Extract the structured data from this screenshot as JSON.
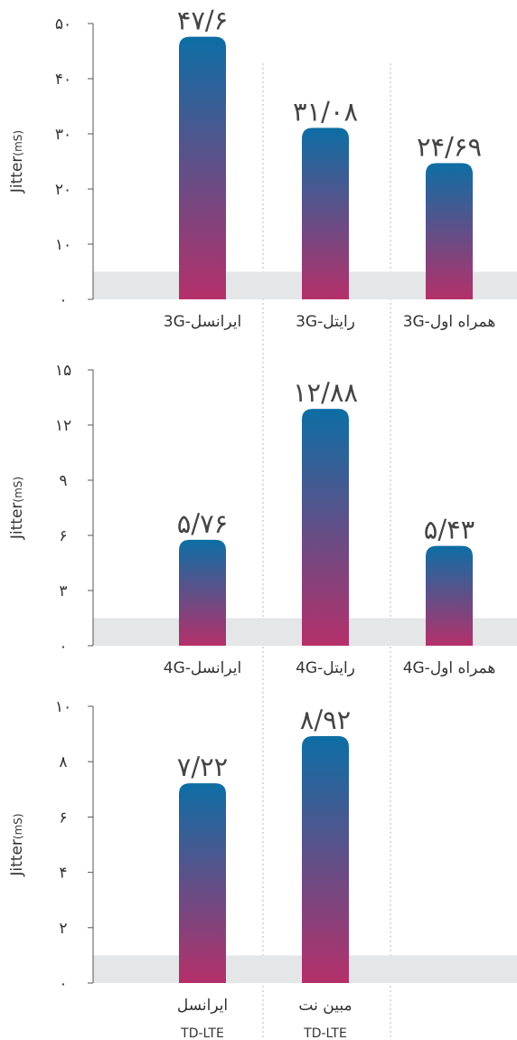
{
  "colors": {
    "bar_top": "#0d6ea5",
    "bar_bottom": "#b5306a",
    "baseline_band": "#e5e6e8",
    "axis": "#555555",
    "text": "#333333",
    "value_text": "#444444",
    "divider": "#b9b9b9"
  },
  "chart_data": [
    {
      "type": "bar",
      "ylabel": "Jitter",
      "ylabel_unit": "(mS)",
      "ylim": [
        0,
        50
      ],
      "yticks": [
        0,
        10,
        20,
        30,
        40,
        50
      ],
      "ytick_labels": [
        "۰",
        "۱۰",
        "۲۰",
        "۳۰",
        "۴۰",
        "۵۰"
      ],
      "band_max": 5,
      "categories": [
        {
          "label": "3G-ایرانسل",
          "sublabel": ""
        },
        {
          "label": "3G-رایتل",
          "sublabel": ""
        },
        {
          "label": "3G-همراه اول",
          "sublabel": ""
        }
      ],
      "values": [
        47.6,
        31.08,
        24.69
      ],
      "value_labels": [
        "۴۷/۶",
        "۳۱/۰۸",
        "۲۴/۶۹"
      ]
    },
    {
      "type": "bar",
      "ylabel": "Jitter",
      "ylabel_unit": "(mS)",
      "ylim": [
        0,
        15
      ],
      "yticks": [
        0,
        3,
        6,
        9,
        12,
        15
      ],
      "ytick_labels": [
        "۰",
        "۳",
        "۶",
        "۹",
        "۱۲",
        "۱۵"
      ],
      "band_max": 1.5,
      "categories": [
        {
          "label": "4G-ایرانسل",
          "sublabel": ""
        },
        {
          "label": "4G-رایتل",
          "sublabel": ""
        },
        {
          "label": "4G-همراه اول",
          "sublabel": ""
        }
      ],
      "values": [
        5.76,
        12.88,
        5.43
      ],
      "value_labels": [
        "۵/۷۶",
        "۱۲/۸۸",
        "۵/۴۳"
      ]
    },
    {
      "type": "bar",
      "ylabel": "Jitter",
      "ylabel_unit": "(mS)",
      "ylim": [
        0,
        10
      ],
      "yticks": [
        0,
        2,
        4,
        6,
        8,
        10
      ],
      "ytick_labels": [
        "۰",
        "۲",
        "۴",
        "۶",
        "۸",
        "۱۰"
      ],
      "band_max": 1,
      "categories": [
        {
          "label": "ایرانسل",
          "sublabel": "TD-LTE"
        },
        {
          "label": "مبین نت",
          "sublabel": "TD-LTE"
        }
      ],
      "values": [
        7.22,
        8.92
      ],
      "value_labels": [
        "۷/۲۲",
        "۸/۹۲"
      ]
    }
  ]
}
